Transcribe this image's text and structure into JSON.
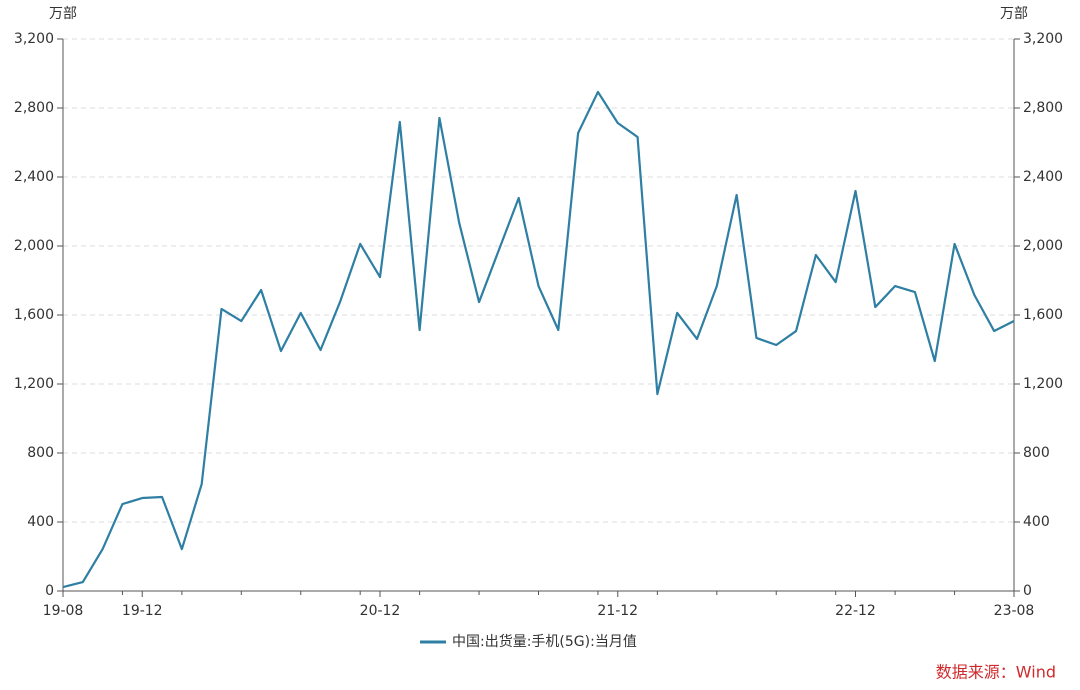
{
  "chart_data": {
    "type": "line",
    "ylabel": "万部",
    "y2label": "万部",
    "source": "数据来源：Wind",
    "categories": [
      "19-08",
      null,
      null,
      null,
      "19-12",
      null,
      null,
      null,
      null,
      null,
      null,
      null,
      null,
      null,
      null,
      null,
      "20-12",
      null,
      null,
      null,
      null,
      null,
      null,
      null,
      null,
      null,
      null,
      null,
      "21-12",
      null,
      null,
      null,
      null,
      null,
      null,
      null,
      null,
      null,
      null,
      null,
      "22-12",
      null,
      null,
      null,
      null,
      null,
      null,
      null,
      "23-08"
    ],
    "series": [
      {
        "name": "中国:出货量:手机(5G):当月值",
        "color": "#2e7fa3",
        "values": [
          23,
          52,
          243,
          504,
          539,
          545,
          243,
          620,
          1635,
          1565,
          1745,
          1391,
          1612,
          1397,
          1681,
          2012,
          1820,
          2719,
          1513,
          2742,
          2133,
          1675,
          1977,
          2278,
          1768,
          1513,
          2655,
          2893,
          2713,
          2632,
          1142,
          1612,
          1461,
          1768,
          2296,
          1467,
          1426,
          1507,
          1948,
          1791,
          2319,
          1646,
          1768,
          1733,
          1333,
          2012,
          1716,
          1507,
          1565
        ]
      }
    ],
    "ylim": [
      0,
      3200
    ],
    "yticks": [
      0,
      400,
      800,
      {
        "value": 1200,
        "label": "1,200"
      },
      {
        "value": 1600,
        "label": "1,600"
      },
      {
        "value": 2000,
        "label": "2,000"
      },
      {
        "value": 2400,
        "label": "2,400"
      },
      {
        "value": 2800,
        "label": "2,800"
      },
      {
        "value": 3200,
        "label": "3,200"
      }
    ],
    "y2lim": [
      0,
      3200
    ],
    "y2ticks": [
      0,
      400,
      800,
      {
        "value": 1200,
        "label": "1,200"
      },
      {
        "value": 1600,
        "label": "1,600"
      },
      {
        "value": 2000,
        "label": "2,000"
      },
      {
        "value": 2400,
        "label": "2,400"
      },
      {
        "value": 2800,
        "label": "2,800"
      },
      {
        "value": 3200,
        "label": "3,200"
      }
    ],
    "grid": true
  }
}
